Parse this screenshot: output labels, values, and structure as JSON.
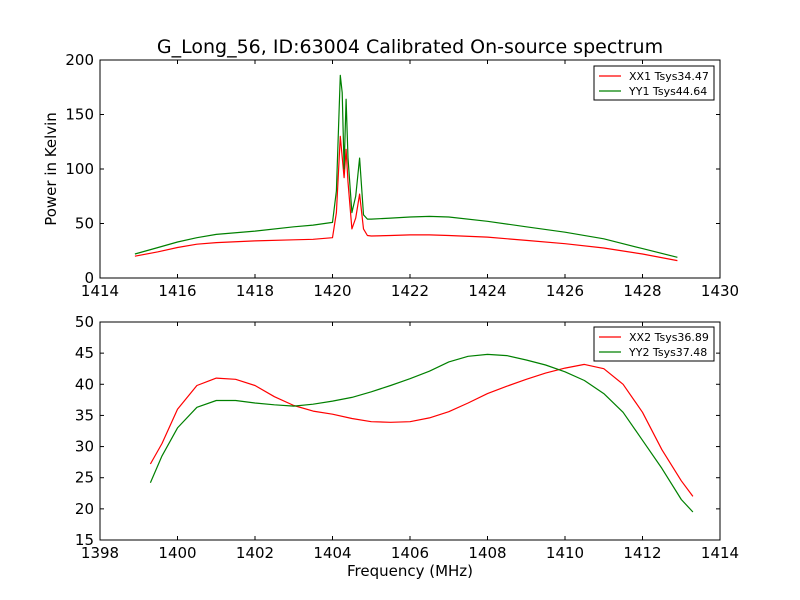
{
  "figure_title": "G_Long_56, ID:63004 Calibrated On-source spectrum",
  "colors": {
    "xx": "#ff0000",
    "yy": "#008000",
    "axes": "#000000",
    "background": "#ffffff"
  },
  "chart_data": [
    {
      "type": "line",
      "title": "G_Long_56, ID:63004 Calibrated On-source spectrum",
      "xlabel": "",
      "ylabel": "Power in Kelvin",
      "xlim": [
        1414,
        1430
      ],
      "ylim": [
        0,
        200
      ],
      "xticks": [
        1414,
        1416,
        1418,
        1420,
        1422,
        1424,
        1426,
        1428,
        1430
      ],
      "yticks": [
        0,
        50,
        100,
        150,
        200
      ],
      "grid": false,
      "legend_position": "top-right",
      "series": [
        {
          "name": "XX1 Tsys34.47",
          "color": "#ff0000",
          "x": [
            1414.9,
            1415.5,
            1416.0,
            1416.5,
            1417.0,
            1418.0,
            1419.0,
            1419.5,
            1420.0,
            1420.1,
            1420.2,
            1420.3,
            1420.35,
            1420.4,
            1420.5,
            1420.6,
            1420.7,
            1420.8,
            1420.9,
            1421.0,
            1421.5,
            1422.0,
            1422.5,
            1423.0,
            1424.0,
            1425.0,
            1426.0,
            1427.0,
            1428.0,
            1428.9
          ],
          "values": [
            20,
            24,
            28,
            31,
            32.5,
            34,
            35,
            35.5,
            37,
            60,
            130,
            92,
            118,
            88,
            45,
            55,
            77,
            45,
            39,
            38.5,
            39,
            39.5,
            39.5,
            39,
            37.5,
            34.5,
            31.5,
            27.5,
            22,
            16
          ]
        },
        {
          "name": "YY1 Tsys44.64",
          "color": "#008000",
          "x": [
            1414.9,
            1415.5,
            1416.0,
            1416.5,
            1417.0,
            1418.0,
            1419.0,
            1419.5,
            1420.0,
            1420.1,
            1420.2,
            1420.25,
            1420.3,
            1420.35,
            1420.4,
            1420.5,
            1420.6,
            1420.7,
            1420.8,
            1420.9,
            1421.0,
            1421.5,
            1422.0,
            1422.5,
            1423.0,
            1424.0,
            1425.0,
            1426.0,
            1427.0,
            1428.0,
            1428.9
          ],
          "values": [
            22,
            28,
            33,
            37,
            40,
            43,
            47,
            48.5,
            51,
            80,
            186,
            170,
            100,
            164,
            110,
            60,
            75,
            110,
            58,
            54,
            54,
            55,
            56,
            56.5,
            56,
            52,
            47,
            42,
            36,
            27,
            19
          ]
        }
      ]
    },
    {
      "type": "line",
      "title": "",
      "xlabel": "Frequency (MHz)",
      "ylabel": "",
      "xlim": [
        1398,
        1414
      ],
      "ylim": [
        15,
        50
      ],
      "xticks": [
        1398,
        1400,
        1402,
        1404,
        1406,
        1408,
        1410,
        1412,
        1414
      ],
      "yticks": [
        15,
        20,
        25,
        30,
        35,
        40,
        45,
        50
      ],
      "grid": false,
      "legend_position": "top-right",
      "series": [
        {
          "name": "XX2 Tsys36.89",
          "color": "#ff0000",
          "x": [
            1399.3,
            1399.6,
            1400.0,
            1400.5,
            1401.0,
            1401.5,
            1402.0,
            1402.5,
            1403.0,
            1403.5,
            1404.0,
            1404.5,
            1405.0,
            1405.5,
            1406.0,
            1406.5,
            1407.0,
            1407.5,
            1408.0,
            1408.5,
            1409.0,
            1409.5,
            1410.0,
            1410.5,
            1411.0,
            1411.5,
            1412.0,
            1412.5,
            1413.0,
            1413.3
          ],
          "values": [
            27.2,
            30.5,
            36,
            39.8,
            41,
            40.8,
            39.8,
            38,
            36.6,
            35.7,
            35.2,
            34.5,
            34,
            33.9,
            34,
            34.6,
            35.6,
            37,
            38.5,
            39.7,
            40.8,
            41.8,
            42.6,
            43.2,
            42.5,
            40,
            35.5,
            29.5,
            24.5,
            22
          ]
        },
        {
          "name": "YY2 Tsys37.48",
          "color": "#008000",
          "x": [
            1399.3,
            1399.6,
            1400.0,
            1400.5,
            1401.0,
            1401.5,
            1402.0,
            1402.5,
            1403.0,
            1403.5,
            1404.0,
            1404.5,
            1405.0,
            1405.5,
            1406.0,
            1406.5,
            1407.0,
            1407.5,
            1408.0,
            1408.5,
            1409.0,
            1409.5,
            1410.0,
            1410.5,
            1411.0,
            1411.5,
            1412.0,
            1412.5,
            1413.0,
            1413.3
          ],
          "values": [
            24.2,
            28.5,
            33,
            36.3,
            37.4,
            37.4,
            37,
            36.7,
            36.5,
            36.8,
            37.3,
            37.9,
            38.8,
            39.8,
            40.9,
            42.1,
            43.6,
            44.5,
            44.8,
            44.6,
            43.9,
            43.1,
            42,
            40.6,
            38.5,
            35.5,
            31,
            26.5,
            21.5,
            19.5
          ]
        }
      ]
    }
  ]
}
